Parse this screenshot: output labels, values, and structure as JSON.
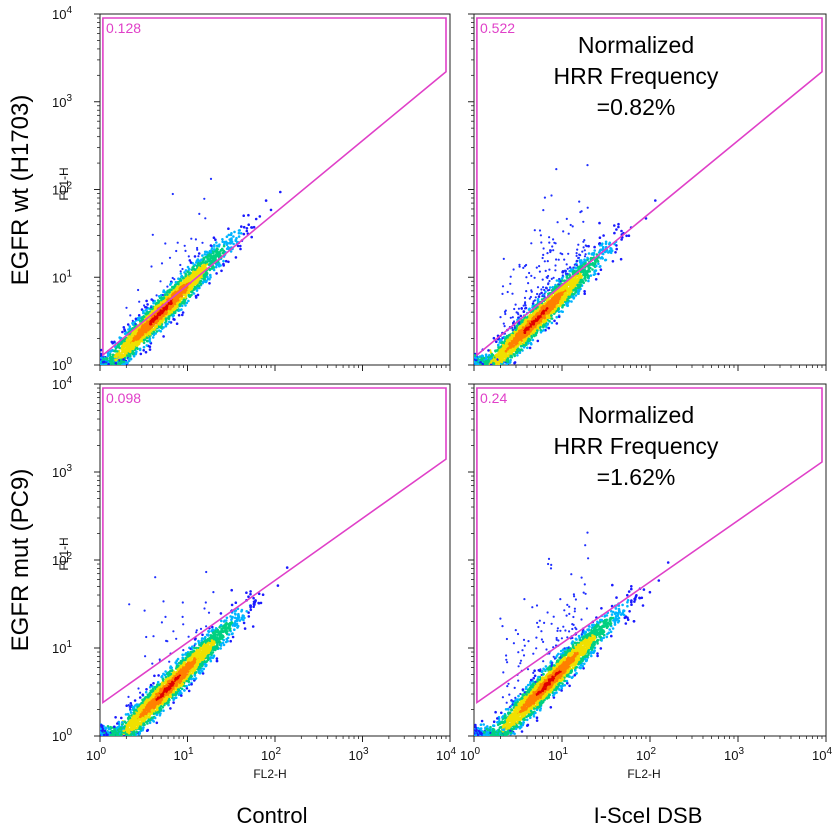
{
  "chart_data": {
    "type": "scatter",
    "row_labels": [
      "EGFR wt (H1703)",
      "EGFR mut (PC9)"
    ],
    "column_labels": [
      "Control",
      "I-SceI DSB"
    ],
    "x_scale": "log",
    "y_scale": "log",
    "xlim": [
      1,
      10000
    ],
    "ylim": [
      1,
      10000
    ],
    "tick_labels": {
      "x": [
        "10",
        "10",
        "10",
        "10",
        "10"
      ],
      "y": [
        "10",
        "10",
        "10",
        "10",
        "10"
      ],
      "exponents": [
        "0",
        "1",
        "2",
        "3",
        "4"
      ]
    },
    "gate_color": "#e040c8",
    "panels": [
      {
        "row": 0,
        "col": 0,
        "xlabel": "",
        "ylabel": "FL1-H",
        "gate_label": "0.128",
        "gate_vertices": [
          [
            1.08,
            9000
          ],
          [
            9000,
            9000
          ],
          [
            9000,
            2200
          ],
          [
            1.08,
            1.3
          ]
        ],
        "annotation": [],
        "density": {
          "center": [
            5,
            4
          ],
          "spread": 0.28,
          "slope": 1.0,
          "outliers": 0.002
        }
      },
      {
        "row": 0,
        "col": 1,
        "xlabel": "",
        "ylabel": "",
        "gate_label": "0.522",
        "gate_vertices": [
          [
            1.08,
            9000
          ],
          [
            9000,
            9000
          ],
          [
            9000,
            2200
          ],
          [
            1.08,
            1.3
          ]
        ],
        "annotation": [
          "Normalized",
          "HRR Frequency",
          "=0.82%"
        ],
        "density": {
          "center": [
            5,
            3.2
          ],
          "spread": 0.32,
          "slope": 1.0,
          "outliers": 0.008
        }
      },
      {
        "row": 1,
        "col": 0,
        "xlabel": "FL2-H",
        "ylabel": "FL1-H",
        "gate_label": "0.098",
        "gate_vertices": [
          [
            1.08,
            9000
          ],
          [
            9000,
            9000
          ],
          [
            9000,
            1400
          ],
          [
            1.08,
            2.4
          ]
        ],
        "annotation": [],
        "density": {
          "center": [
            6,
            3.5
          ],
          "spread": 0.28,
          "slope": 1.0,
          "outliers": 0.002
        }
      },
      {
        "row": 1,
        "col": 1,
        "xlabel": "FL2-H",
        "ylabel": "",
        "gate_label": "0.24",
        "gate_vertices": [
          [
            1.08,
            9000
          ],
          [
            9000,
            9000
          ],
          [
            9000,
            1300
          ],
          [
            1.08,
            2.4
          ]
        ],
        "annotation": [
          "Normalized",
          "HRR Frequency",
          "=1.62%"
        ],
        "density": {
          "center": [
            7,
            4
          ],
          "spread": 0.3,
          "slope": 1.0,
          "outliers": 0.006
        }
      }
    ],
    "density_colormap": [
      "#1a1aff",
      "#00b4ff",
      "#00d080",
      "#f0e000",
      "#ff8000",
      "#e00000"
    ]
  }
}
